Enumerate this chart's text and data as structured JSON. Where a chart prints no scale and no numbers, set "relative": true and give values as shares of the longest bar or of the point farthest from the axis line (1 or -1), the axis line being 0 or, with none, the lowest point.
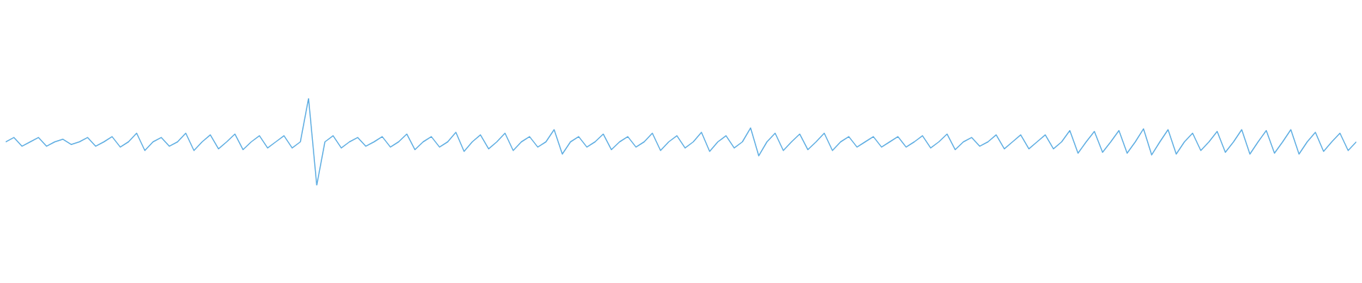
{
  "chart_data": {
    "type": "line",
    "relative": true,
    "marker": "none",
    "categories": [
      null,
      null,
      null,
      null,
      null,
      null,
      null,
      null,
      null,
      null,
      null,
      null,
      null,
      null,
      null,
      null,
      null,
      null,
      null,
      null,
      null,
      null,
      null,
      null,
      null,
      null,
      null,
      null,
      null,
      null,
      null,
      null,
      null,
      null,
      null,
      null,
      null,
      null,
      null,
      null,
      null,
      null,
      null,
      null,
      null,
      null,
      null,
      null,
      null,
      null,
      null,
      null,
      null,
      null,
      null,
      null,
      null,
      null,
      null,
      null,
      null,
      null,
      null,
      null,
      null,
      null,
      null,
      null,
      null,
      null,
      null,
      null,
      null,
      null,
      null,
      null,
      null,
      null,
      null,
      null,
      null,
      null,
      null,
      null,
      null,
      null,
      null,
      null,
      null,
      null,
      null,
      null,
      null,
      null,
      null,
      null,
      null,
      null,
      null,
      null,
      null,
      null,
      null,
      null,
      null,
      null,
      null,
      null,
      null,
      null,
      null,
      null,
      null,
      null,
      null,
      null,
      null,
      null,
      null,
      null,
      null,
      null,
      null,
      null,
      null,
      null,
      null,
      null,
      null,
      null,
      null,
      null,
      null,
      null,
      null,
      null,
      null,
      null,
      null,
      null,
      null,
      null,
      null,
      null,
      null,
      null,
      null,
      null,
      null,
      null,
      null,
      null,
      null,
      null,
      null,
      null,
      null,
      null,
      null,
      null,
      null,
      null,
      null,
      null,
      null,
      null
    ],
    "series": [
      {
        "color": "#5dade2",
        "values": [
          0.5,
          0.55,
          0.45,
          0.5,
          0.55,
          0.45,
          0.5,
          0.53,
          0.47,
          0.5,
          0.55,
          0.45,
          0.5,
          0.56,
          0.44,
          0.5,
          0.6,
          0.4,
          0.5,
          0.55,
          0.45,
          0.5,
          0.6,
          0.4,
          0.5,
          0.58,
          0.42,
          0.5,
          0.59,
          0.41,
          0.5,
          0.57,
          0.43,
          0.5,
          0.57,
          0.43,
          0.5,
          1,
          0,
          0.5,
          0.57,
          0.43,
          0.5,
          0.55,
          0.45,
          0.5,
          0.56,
          0.44,
          0.5,
          0.59,
          0.41,
          0.5,
          0.56,
          0.44,
          0.5,
          0.61,
          0.39,
          0.5,
          0.58,
          0.42,
          0.5,
          0.6,
          0.4,
          0.5,
          0.56,
          0.44,
          0.5,
          0.64,
          0.36,
          0.5,
          0.56,
          0.44,
          0.5,
          0.59,
          0.41,
          0.5,
          0.56,
          0.44,
          0.5,
          0.6,
          0.4,
          0.5,
          0.57,
          0.43,
          0.5,
          0.61,
          0.39,
          0.5,
          0.57,
          0.43,
          0.5,
          0.66,
          0.34,
          0.5,
          0.6,
          0.4,
          0.5,
          0.59,
          0.41,
          0.5,
          0.6,
          0.4,
          0.5,
          0.56,
          0.44,
          0.5,
          0.56,
          0.44,
          0.5,
          0.56,
          0.44,
          0.5,
          0.57,
          0.43,
          0.5,
          0.59,
          0.41,
          0.5,
          0.55,
          0.45,
          0.5,
          0.58,
          0.42,
          0.5,
          0.58,
          0.42,
          0.5,
          0.58,
          0.42,
          0.5,
          0.63,
          0.37,
          0.5,
          0.62,
          0.38,
          0.5,
          0.63,
          0.37,
          0.5,
          0.65,
          0.35,
          0.5,
          0.64,
          0.36,
          0.5,
          0.6,
          0.4,
          0.5,
          0.62,
          0.38,
          0.5,
          0.64,
          0.36,
          0.5,
          0.63,
          0.37,
          0.5,
          0.64,
          0.36,
          0.5,
          0.61,
          0.39,
          0.5,
          0.6,
          0.4,
          0.5
        ]
      }
    ]
  }
}
